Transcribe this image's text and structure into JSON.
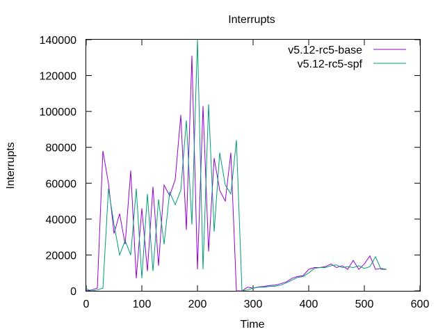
{
  "chart_data": {
    "type": "line",
    "title": "Interrupts",
    "xlabel": "Time",
    "ylabel": "Interrupts",
    "xlim": [
      0,
      600
    ],
    "ylim": [
      0,
      140000
    ],
    "xticks": [
      "0",
      "100",
      "200",
      "300",
      "400",
      "500",
      "600"
    ],
    "yticks": [
      "0",
      "20000",
      "40000",
      "60000",
      "80000",
      "100000",
      "120000",
      "140000"
    ],
    "grid": false,
    "legend_position": "top-right",
    "series": [
      {
        "name": "v5.12-rc5-base",
        "color": "#9400d3",
        "x": [
          0,
          10,
          20,
          30,
          40,
          50,
          60,
          70,
          80,
          90,
          100,
          110,
          120,
          130,
          140,
          150,
          160,
          170,
          180,
          190,
          200,
          210,
          220,
          230,
          240,
          250,
          260,
          270,
          280,
          290,
          300,
          310,
          320,
          330,
          340,
          350,
          360,
          370,
          380,
          390,
          400,
          410,
          420,
          430,
          440,
          450,
          460,
          470,
          480,
          490,
          500,
          510,
          520,
          530,
          540
        ],
        "y": [
          0,
          500,
          1500,
          78000,
          60000,
          32000,
          43000,
          26000,
          67000,
          7000,
          46000,
          11000,
          58000,
          14000,
          59000,
          53000,
          62000,
          98000,
          34000,
          131000,
          12000,
          103000,
          22000,
          74000,
          56000,
          50000,
          77000,
          0,
          0,
          2000,
          1500,
          2200,
          2500,
          3000,
          3200,
          4000,
          5000,
          7000,
          8000,
          8500,
          12000,
          13000,
          13000,
          13500,
          15000,
          13000,
          14000,
          12000,
          17000,
          12000,
          15000,
          19500,
          12000,
          12500,
          12000
        ]
      },
      {
        "name": "v5.12-rc5-spf",
        "color": "#009e73",
        "x": [
          0,
          10,
          20,
          30,
          40,
          50,
          60,
          70,
          80,
          90,
          100,
          110,
          120,
          130,
          140,
          150,
          160,
          170,
          180,
          190,
          200,
          210,
          220,
          230,
          240,
          250,
          260,
          270,
          280,
          290,
          300,
          310,
          320,
          330,
          340,
          350,
          360,
          370,
          380,
          390,
          400,
          410,
          420,
          430,
          440,
          450,
          460,
          470,
          480,
          490,
          500,
          510,
          520,
          530,
          540
        ],
        "y": [
          1000,
          0,
          500,
          1500,
          57000,
          37000,
          20000,
          28000,
          20000,
          57000,
          7000,
          54000,
          11000,
          51000,
          26000,
          55000,
          48000,
          56000,
          95000,
          37000,
          140000,
          12000,
          104000,
          33000,
          77000,
          59000,
          54000,
          84000,
          0,
          500,
          1500,
          2000,
          2000,
          2500,
          2600,
          3200,
          4500,
          6000,
          7500,
          8000,
          10000,
          12500,
          13000,
          13000,
          14000,
          14500,
          13000,
          13500,
          13000,
          14000,
          12500,
          13500,
          19000,
          12000,
          12000
        ]
      }
    ]
  }
}
